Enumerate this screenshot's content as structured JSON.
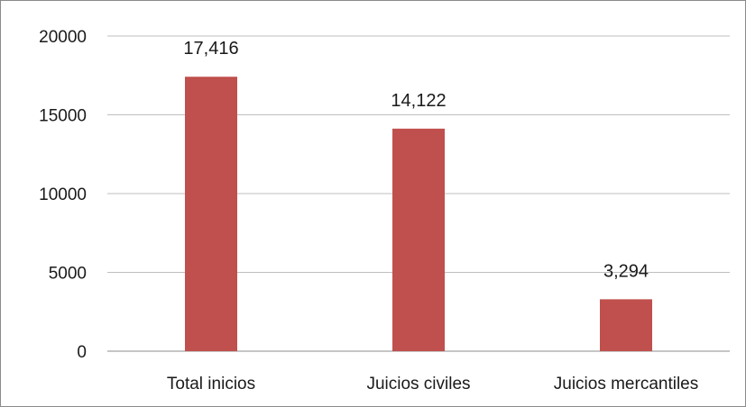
{
  "chart_data": {
    "type": "bar",
    "categories": [
      "Total inicios",
      "Juicios civiles",
      "Juicios mercantiles"
    ],
    "values": [
      17416,
      14122,
      3294
    ],
    "data_labels": [
      "17,416",
      "14,122",
      "3,294"
    ],
    "ylim": [
      0,
      20000
    ],
    "yticks": [
      0,
      5000,
      10000,
      15000,
      20000
    ],
    "ytick_labels": [
      "0",
      "5000",
      "10000",
      "15000",
      "20000"
    ],
    "grid": true,
    "legend": "none",
    "colors": {
      "bar": "#c0504d",
      "grid": "#bfbfbf",
      "axis": "#8c8c8c",
      "frame": "#8a8a8a"
    }
  }
}
